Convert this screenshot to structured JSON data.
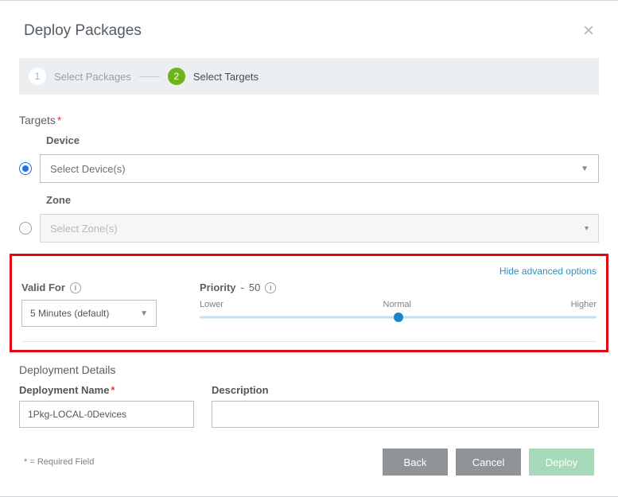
{
  "dialog": {
    "title": "Deploy Packages",
    "close_symbol": "×"
  },
  "stepper": {
    "steps": [
      {
        "num": "1",
        "label": "Select Packages",
        "state": "inactive"
      },
      {
        "num": "2",
        "label": "Select Targets",
        "state": "active"
      }
    ]
  },
  "targets": {
    "title": "Targets",
    "device_label": "Device",
    "device_placeholder": "Select Device(s)",
    "zone_label": "Zone",
    "zone_placeholder": "Select Zone(s)",
    "selected": "device"
  },
  "advanced": {
    "link_text": "Hide advanced options",
    "valid_for_label": "Valid For",
    "valid_for_value": "5 Minutes (default)",
    "priority_label": "Priority",
    "priority_value": "50",
    "slider": {
      "lower": "Lower",
      "normal": "Normal",
      "higher": "Higher",
      "position_percent": 50,
      "rail_color": "#bfe2f2",
      "thumb_color": "#1a86c8"
    }
  },
  "deployment": {
    "section_title": "Deployment Details",
    "name_label": "Deployment Name",
    "name_value": "1Pkg-LOCAL-0Devices",
    "desc_label": "Description",
    "desc_value": ""
  },
  "footer": {
    "required_note": "* = Required Field",
    "back": "Back",
    "cancel": "Cancel",
    "deploy": "Deploy"
  },
  "colors": {
    "highlight_border": "#e30613",
    "step_active_bg": "#6fb31b",
    "link": "#2d8fbd"
  }
}
